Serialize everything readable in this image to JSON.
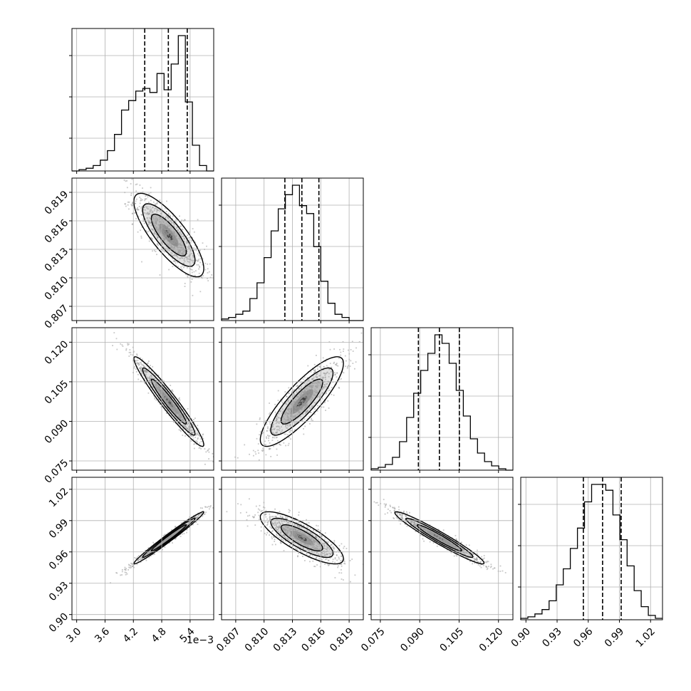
{
  "chart_data": {
    "type": "corner",
    "description_note": "",
    "parameters": [
      {
        "range": [
          2.9,
          5.9
        ],
        "ticks": [
          "3.0",
          "3.6",
          "4.2",
          "4.8",
          "5.4"
        ],
        "tick_values": [
          3.0,
          3.6,
          4.2,
          4.8,
          5.4
        ],
        "offset_label": "1e−3"
      },
      {
        "range": [
          0.8055,
          0.8205
        ],
        "ticks": [
          "0.807",
          "0.810",
          "0.813",
          "0.816",
          "0.819"
        ],
        "tick_values": [
          0.807,
          0.81,
          0.813,
          0.816,
          0.819
        ]
      },
      {
        "range": [
          0.0715,
          0.1255
        ],
        "ticks": [
          "0.075",
          "0.090",
          "0.105",
          "0.120"
        ],
        "tick_values": [
          0.075,
          0.09,
          0.105,
          0.12
        ]
      },
      {
        "range": [
          0.895,
          1.0315
        ],
        "ticks": [
          "0.90",
          "0.93",
          "0.96",
          "0.99",
          "1.02"
        ],
        "tick_values": [
          0.9,
          0.93,
          0.96,
          0.99,
          1.02
        ]
      }
    ],
    "histograms": [
      {
        "param": 0,
        "counts": [
          0,
          1,
          2,
          4,
          8,
          15,
          27,
          45,
          52,
          59,
          61,
          58,
          72,
          60,
          79,
          100,
          51,
          19,
          4,
          0
        ],
        "quantiles": [
          4.44,
          4.94,
          5.34
        ]
      },
      {
        "param": 1,
        "counts": [
          1,
          2,
          4,
          6,
          14,
          24,
          40,
          57,
          71,
          80,
          86,
          73,
          68,
          47,
          25,
          11,
          4,
          2,
          0,
          0
        ],
        "quantiles": [
          0.8122,
          0.814,
          0.8158
        ]
      },
      {
        "param": 2,
        "counts": [
          1,
          2,
          4,
          9,
          20,
          37,
          54,
          70,
          82,
          95,
          89,
          75,
          56,
          38,
          22,
          12,
          6,
          3,
          1,
          0
        ],
        "quantiles": [
          0.0895,
          0.0975,
          0.1051
        ]
      },
      {
        "param": 3,
        "counts": [
          1,
          2,
          4,
          7,
          13,
          24,
          35,
          49,
          63,
          81,
          93,
          93,
          89,
          72,
          55,
          37,
          20,
          9,
          3,
          1
        ],
        "quantiles": [
          0.9553,
          0.9738,
          0.9917
        ]
      }
    ],
    "pairs": [
      {
        "x": 0,
        "y": 1,
        "mean": [
          4.95,
          0.8145
        ],
        "sd": [
          0.37,
          0.0022
        ],
        "corr": -0.8
      },
      {
        "x": 0,
        "y": 2,
        "mean": [
          4.95,
          0.0975
        ],
        "sd": [
          0.37,
          0.0085
        ],
        "corr": -0.96
      },
      {
        "x": 1,
        "y": 2,
        "mean": [
          0.814,
          0.0975
        ],
        "sd": [
          0.0022,
          0.0085
        ],
        "corr": 0.85
      },
      {
        "x": 0,
        "y": 3,
        "mean": [
          4.95,
          0.9735
        ],
        "sd": [
          0.37,
          0.0125
        ],
        "corr": 0.985
      },
      {
        "x": 1,
        "y": 3,
        "mean": [
          0.814,
          0.9735
        ],
        "sd": [
          0.0022,
          0.0125
        ],
        "corr": -0.8
      },
      {
        "x": 2,
        "y": 3,
        "mean": [
          0.0975,
          0.9735
        ],
        "sd": [
          0.0085,
          0.0125
        ],
        "corr": -0.965
      }
    ],
    "grid": true
  },
  "colors": {
    "hist_line": "#000000",
    "quantile_line": "#000000",
    "contour_line": "#000000",
    "scatter_point": "#9a9a9a",
    "grid_line": "#b0b0b0"
  }
}
